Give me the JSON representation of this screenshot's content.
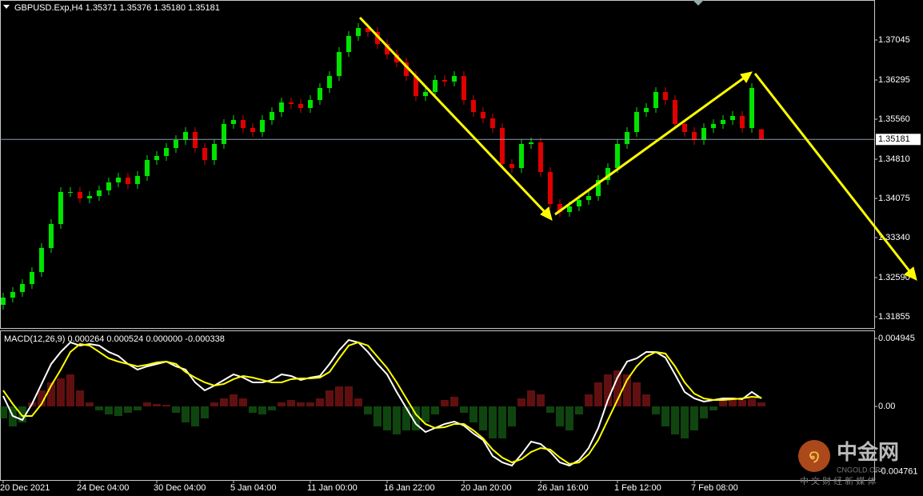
{
  "chart_data": [
    {
      "type": "candlestick",
      "title": "GBPUSD.Exp,H4  1.35371 1.35376 1.35180 1.35181",
      "up_color": "#00e400",
      "down_color": "#e00000",
      "open": [
        1.3208,
        1.32215,
        1.3232,
        1.3247,
        1.32695,
        1.33145,
        1.33595,
        1.34195,
        1.34195,
        1.34075,
        1.3412,
        1.34225,
        1.34375,
        1.34465,
        1.34345,
        1.34495,
        1.34795,
        1.3487,
        1.3502,
        1.3517,
        1.3532,
        1.3502,
        1.34795,
        1.35095,
        1.3547,
        1.35545,
        1.35395,
        1.3532,
        1.35545,
        1.35695,
        1.35875,
        1.35845,
        1.3577,
        1.3592,
        1.36145,
        1.3637,
        1.3682,
        1.3712,
        1.3727,
        1.37195,
        1.3697,
        1.36775,
        1.36625,
        1.3637,
        1.35995,
        1.3607,
        1.36295,
        1.36265,
        1.3637,
        1.3592,
        1.35695,
        1.35575,
        1.35395,
        1.3472,
        1.34645,
        1.35095,
        1.35125,
        1.3457,
        1.3397,
        1.3382,
        1.33925,
        1.34045,
        1.3412,
        1.3442,
        1.34645,
        1.35095,
        1.3532,
        1.35695,
        1.3577,
        1.3607,
        1.3592,
        1.3547,
        1.3532,
        1.3517,
        1.35395,
        1.3547,
        1.35545,
        1.3562,
        1.35395,
        1.35371
      ],
      "high": [
        1.32305,
        1.3241,
        1.3256,
        1.32785,
        1.33235,
        1.33685,
        1.34285,
        1.34285,
        1.34285,
        1.3421,
        1.34315,
        1.34465,
        1.34555,
        1.34555,
        1.34585,
        1.34885,
        1.3496,
        1.3511,
        1.3526,
        1.3541,
        1.3541,
        1.3511,
        1.35185,
        1.3556,
        1.35635,
        1.35635,
        1.35485,
        1.35635,
        1.35785,
        1.35965,
        1.35965,
        1.35935,
        1.3601,
        1.36235,
        1.3646,
        1.3691,
        1.3721,
        1.3736,
        1.3736,
        1.37285,
        1.3706,
        1.36865,
        1.36715,
        1.3646,
        1.3616,
        1.36385,
        1.36385,
        1.3646,
        1.3646,
        1.3601,
        1.35785,
        1.35665,
        1.35485,
        1.3481,
        1.35185,
        1.35215,
        1.35215,
        1.3466,
        1.3406,
        1.34015,
        1.34135,
        1.3421,
        1.3451,
        1.34735,
        1.35185,
        1.3541,
        1.35785,
        1.3586,
        1.3616,
        1.3616,
        1.3601,
        1.3556,
        1.3541,
        1.35485,
        1.3556,
        1.35635,
        1.3571,
        1.3571,
        1.36235,
        1.35376
      ],
      "low": [
        1.3199,
        1.32125,
        1.3223,
        1.3238,
        1.32605,
        1.33055,
        1.33505,
        1.34105,
        1.33985,
        1.33985,
        1.3403,
        1.34135,
        1.34285,
        1.34255,
        1.34255,
        1.34405,
        1.34705,
        1.3478,
        1.3493,
        1.3508,
        1.3493,
        1.34705,
        1.34705,
        1.35005,
        1.3538,
        1.35305,
        1.3523,
        1.3523,
        1.35455,
        1.35605,
        1.35755,
        1.3568,
        1.3568,
        1.3583,
        1.36055,
        1.3628,
        1.3673,
        1.3703,
        1.37105,
        1.3688,
        1.36685,
        1.36535,
        1.3628,
        1.35905,
        1.35905,
        1.3598,
        1.36175,
        1.36175,
        1.3583,
        1.35605,
        1.35485,
        1.35305,
        1.3463,
        1.34555,
        1.34555,
        1.35005,
        1.3448,
        1.3388,
        1.3373,
        1.3373,
        1.33835,
        1.33955,
        1.3403,
        1.3433,
        1.34555,
        1.35005,
        1.3523,
        1.35605,
        1.3568,
        1.3583,
        1.3538,
        1.3523,
        1.3508,
        1.3508,
        1.35305,
        1.3538,
        1.35455,
        1.35305,
        1.35305,
        1.3518
      ],
      "close": [
        1.32215,
        1.3232,
        1.3247,
        1.32695,
        1.33145,
        1.33595,
        1.34195,
        1.34195,
        1.34075,
        1.3412,
        1.34225,
        1.34375,
        1.34465,
        1.34345,
        1.34495,
        1.34795,
        1.3487,
        1.3502,
        1.3517,
        1.3532,
        1.3502,
        1.34795,
        1.35095,
        1.3547,
        1.35545,
        1.35395,
        1.3532,
        1.35545,
        1.35695,
        1.35875,
        1.35845,
        1.3577,
        1.3592,
        1.36145,
        1.3637,
        1.3682,
        1.3712,
        1.3727,
        1.37195,
        1.3697,
        1.36775,
        1.36625,
        1.3637,
        1.35995,
        1.3607,
        1.36295,
        1.36265,
        1.3637,
        1.3592,
        1.35695,
        1.35575,
        1.35395,
        1.3472,
        1.34645,
        1.35095,
        1.35125,
        1.3457,
        1.3397,
        1.3382,
        1.33925,
        1.34045,
        1.3412,
        1.3442,
        1.34645,
        1.35095,
        1.3532,
        1.35695,
        1.3577,
        1.3607,
        1.3592,
        1.3547,
        1.3532,
        1.3517,
        1.35395,
        1.3547,
        1.35545,
        1.3562,
        1.35395,
        1.36145,
        1.35181
      ],
      "price_line": 1.35181,
      "price_line_color": "#8a9bb0",
      "xlim": [
        -0.33,
        90.75
      ],
      "ylim": [
        1.31645,
        1.37795
      ],
      "yticks": [
        1.37045,
        1.36295,
        {
          "value": 1.3556,
          "label": "1.35560"
        },
        {
          "value": 1.3481,
          "label": "1.34810"
        },
        1.34075,
        {
          "value": 1.3334,
          "label": "1.33340"
        },
        {
          "value": 1.3259,
          "label": "1.32590"
        },
        1.31855
      ]
    },
    {
      "type": "macd",
      "title": "MACD(12,26,9) 0.000264 0.000524 0.000000 -0.000338",
      "histogram": {
        "up_color": "#c02020",
        "down_color": "#1f8a1f",
        "values": [
          -0.000873,
          -0.001455,
          -0.001164,
          0.000291,
          0.001164,
          0.001746,
          0.002037,
          0.002328,
          0.001164,
          0.000291,
          -0.000291,
          -0.000582,
          -0.000698,
          -0.000466,
          -0.000291,
          0.000291,
          0.000175,
          0.000116,
          -0.000466,
          -0.001164,
          -0.001455,
          -0.000873,
          0.000291,
          0.000582,
          0.000873,
          0.000582,
          -0.000466,
          -0.000582,
          -0.000291,
          0.000291,
          0.000466,
          0.000291,
          0.000291,
          0.000582,
          0.001164,
          0.001455,
          0.001455,
          0.000582,
          -0.000582,
          -0.001455,
          -0.001746,
          -0.002037,
          -0.001746,
          -0.001746,
          -0.001164,
          -0.000582,
          0.000466,
          0.000698,
          -0.000466,
          -0.001164,
          -0.001746,
          -0.002328,
          -0.002328,
          -0.001455,
          0.000582,
          0.001164,
          0.000873,
          -0.000466,
          -0.001455,
          -0.001746,
          -0.000582,
          0.000873,
          0.001746,
          0.002328,
          0.002619,
          0.002328,
          0.001746,
          0.000873,
          -0.000582,
          -0.001455,
          -0.002037,
          -0.002328,
          -0.001746,
          -0.000873,
          -0.000291,
          0.000466,
          0.000582,
          0.000466,
          0.000582,
          0.000291
        ]
      },
      "series": [
        {
          "color": "#ffffff",
          "values": [
            0.000757,
            -0.000698,
            -0.000989,
            0.000175,
            0.00163,
            0.003085,
            0.003958,
            0.004656,
            0.004423,
            0.00454,
            0.004423,
            0.003958,
            0.003667,
            0.003085,
            0.002677,
            0.00291,
            0.003085,
            0.003259,
            0.00291,
            0.002677,
            0.001746,
            0.001164,
            0.001513,
            0.001921,
            0.002328,
            0.002095,
            0.001746,
            0.001746,
            0.001921,
            0.002328,
            0.002212,
            0.001921,
            0.002095,
            0.002212,
            0.003085,
            0.004074,
            0.004831,
            0.004656,
            0.003958,
            0.003085,
            0.002328,
            0.001048,
            -0.000116,
            -0.00128,
            -0.001862,
            -0.001571,
            -0.00128,
            -0.001106,
            -0.001397,
            -0.001979,
            -0.002444,
            -0.003608,
            -0.004074,
            -0.004307,
            -0.003492,
            -0.002561,
            -0.002735,
            -0.003317,
            -0.004074,
            -0.004307,
            -0.003899,
            -0.003026,
            -0.001571,
            0.000466,
            0.002095,
            0.003259,
            0.003492,
            0.003958,
            0.003958,
            0.00355,
            0.002328,
            0.001048,
            0.000582,
            0.000349,
            0.000466,
            0.000582,
            0.000582,
            0.000524,
            0.001048,
            0.000582
          ]
        },
        {
          "color": "#ffff00",
          "values": [
            0.001164,
            0.000175,
            -0.000698,
            -0.000698,
            0.000175,
            0.001513,
            0.002677,
            0.003958,
            0.00454,
            0.004423,
            0.003958,
            0.003492,
            0.003259,
            0.003085,
            0.00291,
            0.003026,
            0.003201,
            0.003259,
            0.003085,
            0.002503,
            0.002095,
            0.001746,
            0.001513,
            0.00163,
            0.001979,
            0.002212,
            0.002095,
            0.001921,
            0.001746,
            0.001746,
            0.001979,
            0.002037,
            0.002037,
            0.002095,
            0.002503,
            0.003492,
            0.004423,
            0.004656,
            0.004423,
            0.003608,
            0.002794,
            0.001746,
            0.000582,
            -0.000582,
            -0.00128,
            -0.001571,
            -0.001513,
            -0.00128,
            -0.00128,
            -0.001746,
            -0.002328,
            -0.003143,
            -0.003725,
            -0.004074,
            -0.003841,
            -0.003317,
            -0.003026,
            -0.003143,
            -0.003725,
            -0.00419,
            -0.004074,
            -0.003492,
            -0.002444,
            -0.000989,
            0.000466,
            0.001921,
            0.00291,
            0.003608,
            0.003958,
            0.003841,
            0.00291,
            0.001746,
            0.000931,
            0.000582,
            0.000466,
            0.000466,
            0.000524,
            0.000582,
            0.000698,
            0.00064
          ]
        }
      ],
      "xlim": [
        -0.33,
        90.75
      ],
      "ylim": [
        -0.005354,
        0.005527
      ],
      "yticks": [
        0.004945,
        {
          "value": 0,
          "label": "0.00"
        },
        -0.004761
      ],
      "xticks": [
        {
          "value": 0,
          "label": "20 Dec 2021"
        },
        {
          "value": 8,
          "label": "24 Dec 04:00"
        },
        {
          "value": 16,
          "label": "30 Dec 04:00"
        },
        {
          "value": 24,
          "label": "5 Jan 04:00"
        },
        {
          "value": 32,
          "label": "11 Jan 00:00"
        },
        {
          "value": 40,
          "label": "16 Jan 22:00"
        },
        {
          "value": 48,
          "label": "20 Jan 20:00"
        },
        {
          "value": 56,
          "label": "26 Jan 16:00"
        },
        {
          "value": 64,
          "label": "1 Feb 12:00"
        },
        {
          "value": 72,
          "label": "7 Feb 08:00"
        }
      ]
    }
  ],
  "watermark": {
    "brand": "中金网",
    "site": "CNGOLD.ORG",
    "slogan": "中 文 财 经 新 媒 体"
  }
}
